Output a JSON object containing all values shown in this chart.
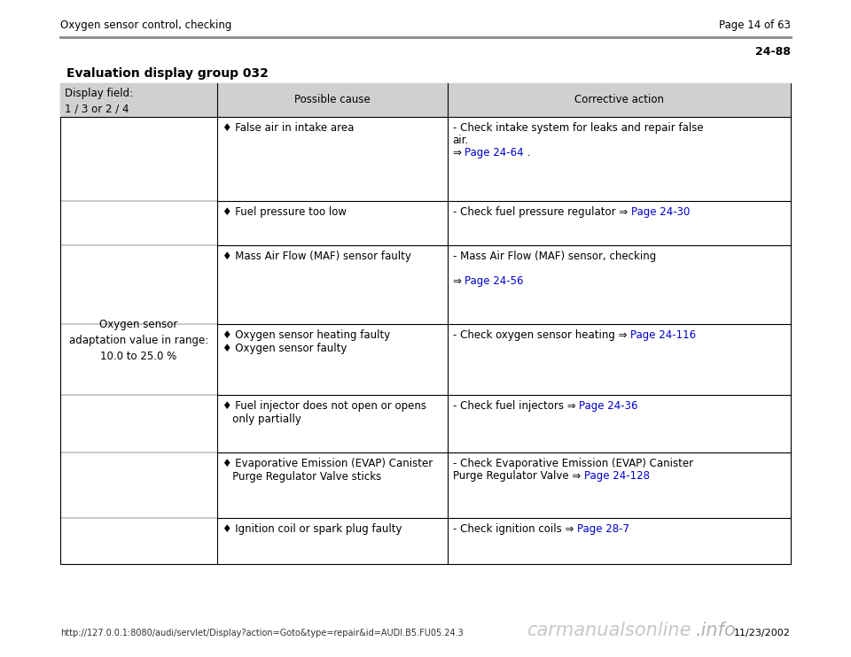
{
  "title_left": "Oxygen sensor control, checking",
  "title_right": "Page 14 of 63",
  "page_num": "24-88",
  "section_title": "Evaluation display group 032",
  "col1_header": "Display field:\n1 / 3 or 2 / 4",
  "col2_header": "Possible cause",
  "col3_header": "Corrective action",
  "col1_content": "Oxygen sensor\nadaptation value in range:\n10.0 to 25.0 %",
  "rows": [
    {
      "cause_lines": [
        "♦ False air in intake area"
      ],
      "action_parts": [
        {
          "text": "- Check intake system for leaks and repair false\nair.\n⇒ ",
          "color": "black"
        },
        {
          "text": "Page 24-64",
          "color": "blue"
        },
        {
          "text": " .",
          "color": "black"
        }
      ]
    },
    {
      "cause_lines": [
        "♦ Fuel pressure too low"
      ],
      "action_parts": [
        {
          "text": "- Check fuel pressure regulator ⇒ ",
          "color": "black"
        },
        {
          "text": "Page 24-30",
          "color": "blue"
        }
      ]
    },
    {
      "cause_lines": [
        "♦ Mass Air Flow (MAF) sensor faulty"
      ],
      "action_parts": [
        {
          "text": "- Mass Air Flow (MAF) sensor, checking\n\n⇒ ",
          "color": "black"
        },
        {
          "text": "Page 24-56",
          "color": "blue"
        }
      ]
    },
    {
      "cause_lines": [
        "♦ Oxygen sensor heating faulty",
        "♦ Oxygen sensor faulty"
      ],
      "action_parts": [
        {
          "text": "- Check oxygen sensor heating ⇒ ",
          "color": "black"
        },
        {
          "text": "Page 24-116",
          "color": "blue"
        }
      ]
    },
    {
      "cause_lines": [
        "♦ Fuel injector does not open or opens\n   only partially"
      ],
      "action_parts": [
        {
          "text": "- Check fuel injectors ⇒ ",
          "color": "black"
        },
        {
          "text": "Page 24-36",
          "color": "blue"
        }
      ]
    },
    {
      "cause_lines": [
        "♦ Evaporative Emission (EVAP) Canister\n   Purge Regulator Valve sticks"
      ],
      "action_parts": [
        {
          "text": "- Check Evaporative Emission (EVAP) Canister\nPurge Regulator Valve ⇒ ",
          "color": "black"
        },
        {
          "text": "Page 24-128",
          "color": "blue"
        }
      ]
    },
    {
      "cause_lines": [
        "♦ Ignition coil or spark plug faulty"
      ],
      "action_parts": [
        {
          "text": "- Check ignition coils ⇒ ",
          "color": "black"
        },
        {
          "text": "Page 28-7",
          "color": "blue"
        }
      ]
    }
  ],
  "footer_url": "http://127.0.0.1:8080/audi/servlet/Display?action=Goto&type=repair&id=AUDI.B5.FU05.24.3",
  "footer_date": "11/23/2002",
  "link_color": "#0000cc",
  "text_color": "#000000",
  "bg_color": "#ffffff",
  "border_color": "#000000",
  "header_color": "#d0d0d0",
  "separator_color": "#888888"
}
